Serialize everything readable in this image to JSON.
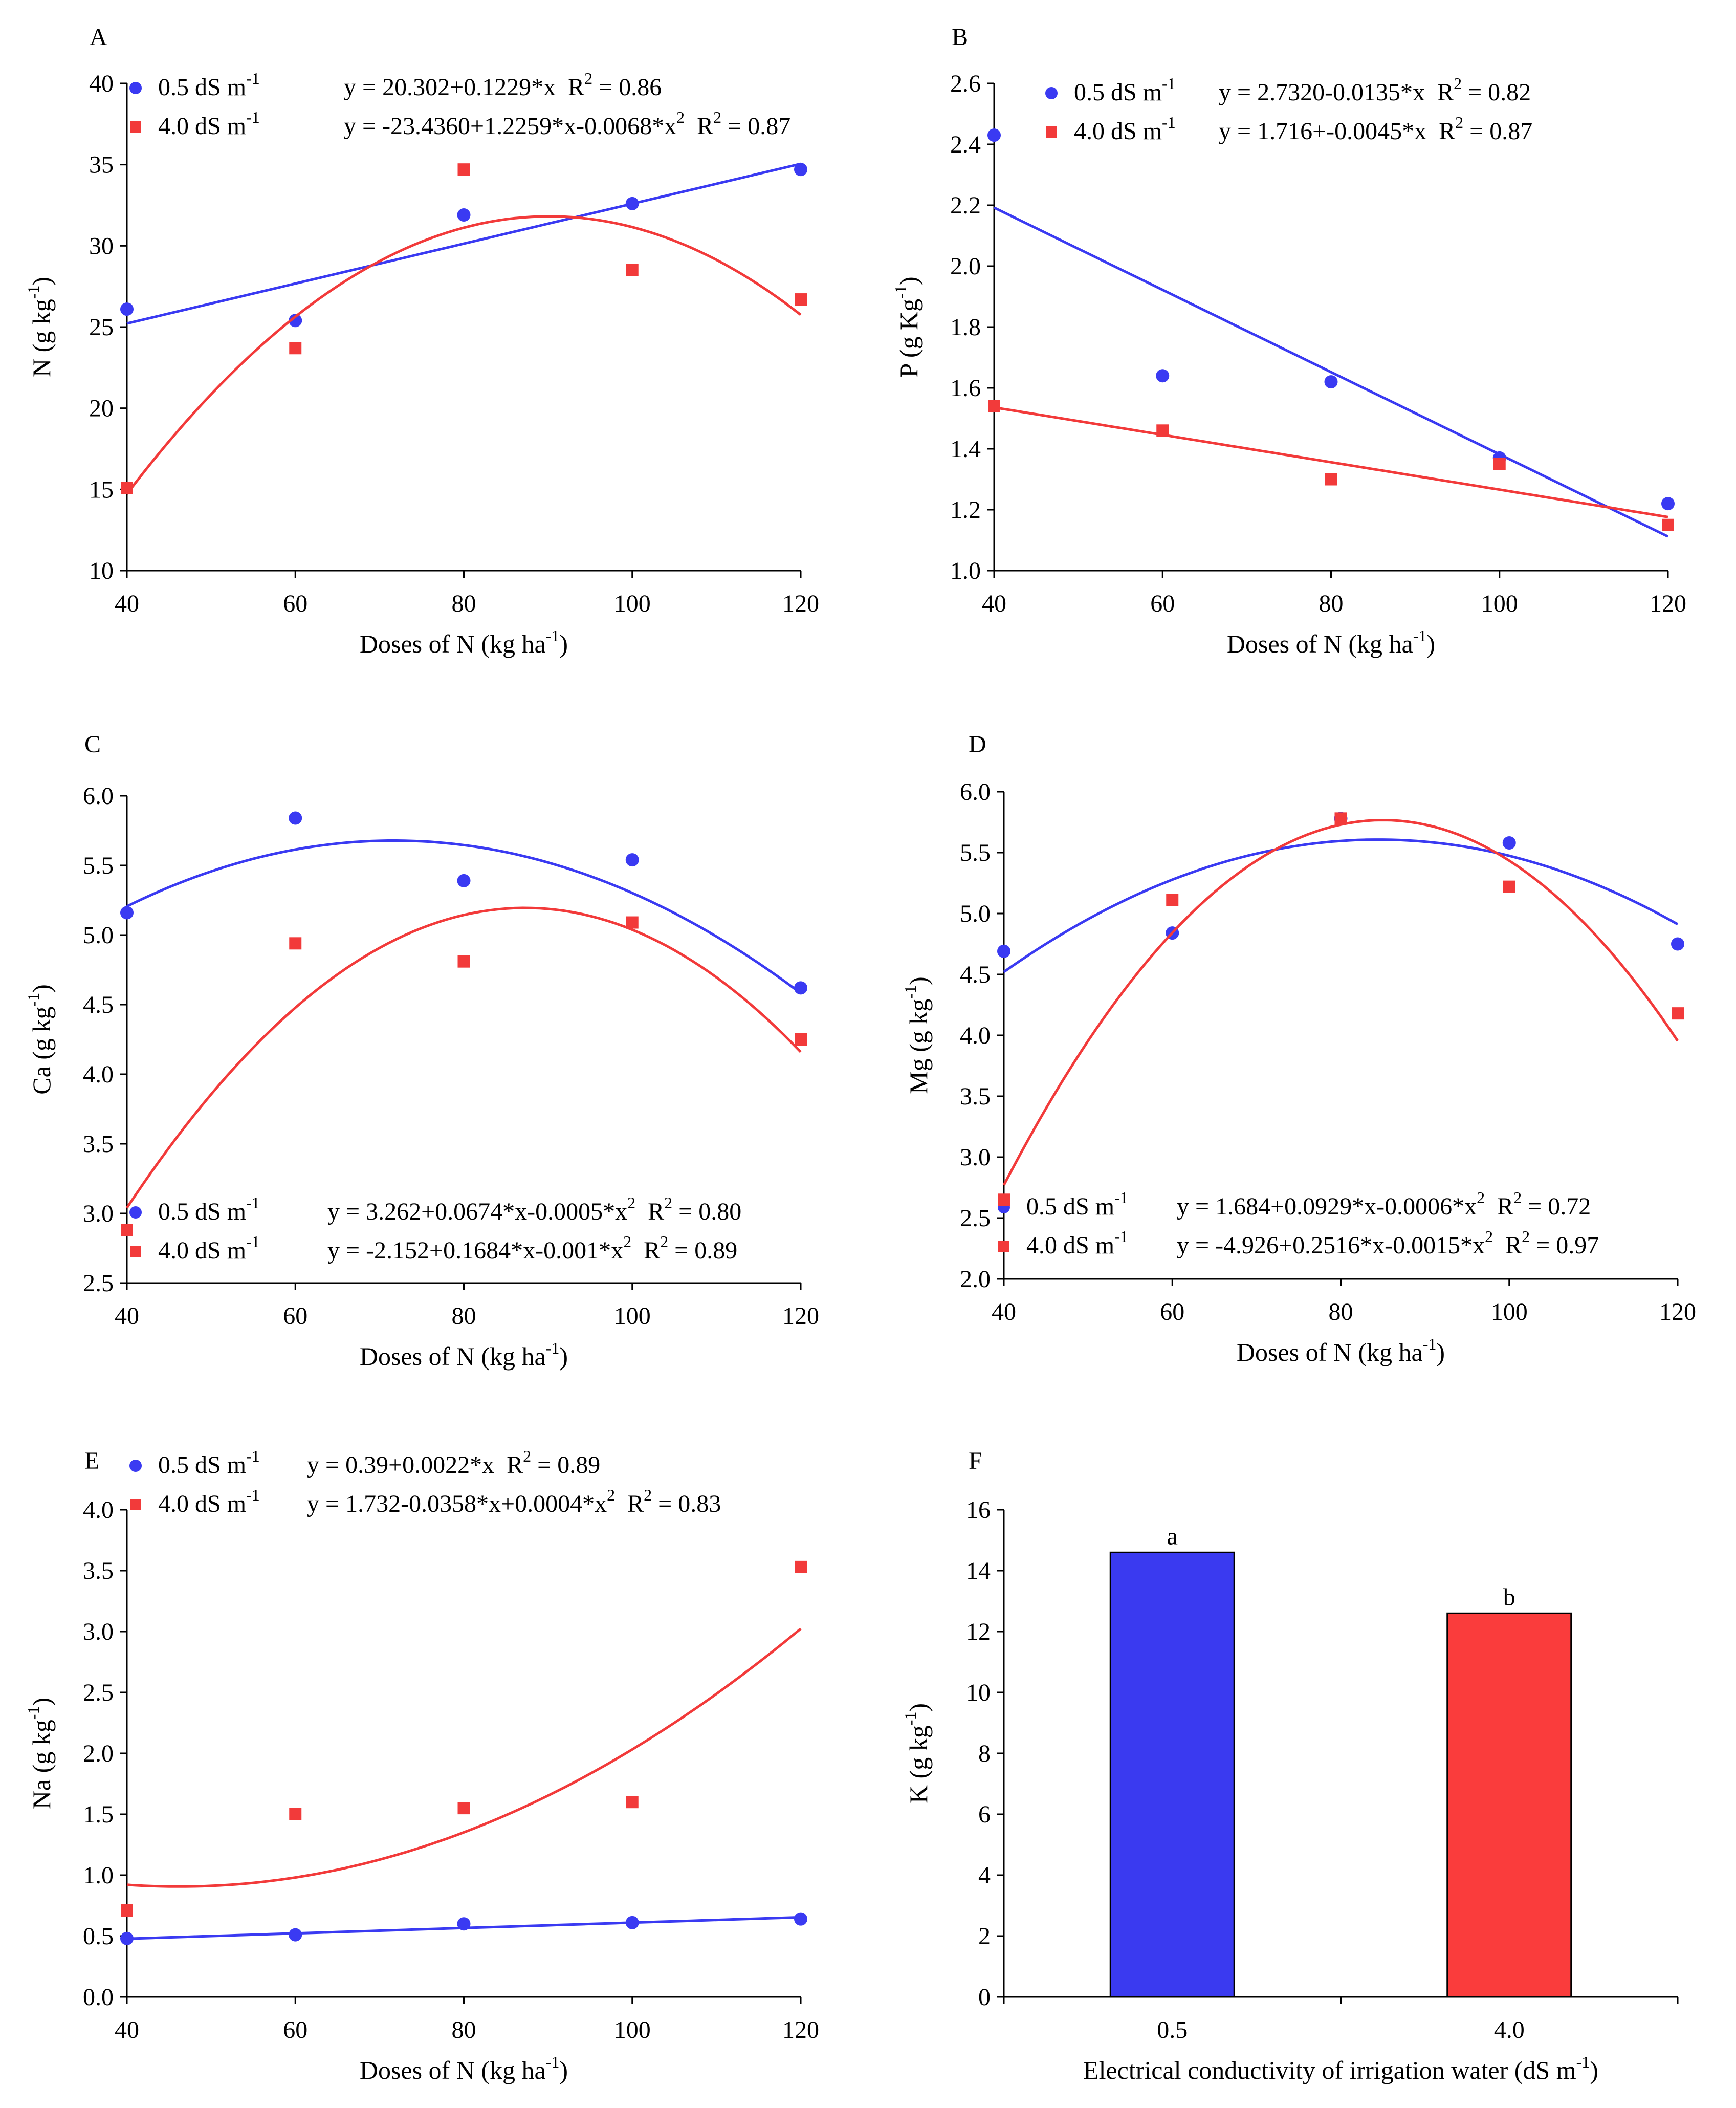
{
  "colors": {
    "blue": "#3a3af2",
    "red": "#f23a3a",
    "bar_blue": "#3a3af0",
    "bar_red": "#fa3c3c"
  },
  "chart_data": [
    {
      "panel": "A",
      "type": "scatter",
      "xlabel": "Doses of N (kg ha",
      "xlabel_sup": "-1",
      "xlabel_end": ")",
      "ylabel": "N (g kg",
      "ylabel_sup": "-1",
      "ylabel_end": ")",
      "xlim": [
        40,
        120
      ],
      "xticks": [
        40,
        60,
        80,
        100,
        120
      ],
      "ylim": [
        10,
        40
      ],
      "yticks": [
        10,
        15,
        20,
        25,
        30,
        35,
        40
      ],
      "ydec": 0,
      "series": [
        {
          "name": "0.5 dS m",
          "color": "#3a3af2",
          "marker": "circle",
          "x": [
            40,
            60,
            80,
            100,
            120
          ],
          "y": [
            26.1,
            25.4,
            31.9,
            32.6,
            34.7
          ],
          "fit": [
            20.302,
            0.1229,
            0
          ],
          "eq": "y = 20.302+0.1229*x",
          "eq_sq": false,
          "r2": "R",
          "r2_val": " = 0.86"
        },
        {
          "name": "4.0 dS m",
          "color": "#f23a3a",
          "marker": "square",
          "x": [
            40,
            60,
            80,
            100,
            120
          ],
          "y": [
            15.1,
            23.7,
            34.7,
            28.5,
            26.7
          ],
          "fit": [
            -23.436,
            1.2259,
            -0.0068
          ],
          "eq": "y = -23.4360+1.2259*x-0.0068*x",
          "eq_sq": true,
          "r2": "R",
          "r2_val": " = 0.87"
        }
      ]
    },
    {
      "panel": "B",
      "type": "scatter",
      "xlabel": "Doses of N (kg ha",
      "xlabel_sup": "-1",
      "xlabel_end": ")",
      "ylabel": "P (g Kg",
      "ylabel_sup": "-1",
      "ylabel_end": ")",
      "xlim": [
        40,
        120
      ],
      "xticks": [
        40,
        60,
        80,
        100,
        120
      ],
      "ylim": [
        1.0,
        2.6
      ],
      "yticks": [
        1.0,
        1.2,
        1.4,
        1.6,
        1.8,
        2.0,
        2.2,
        2.4,
        2.6
      ],
      "ydec": 1,
      "series": [
        {
          "name": "0.5 dS m",
          "color": "#3a3af2",
          "marker": "circle",
          "x": [
            40,
            60,
            80,
            100,
            120
          ],
          "y": [
            2.43,
            1.64,
            1.62,
            1.37,
            1.22
          ],
          "fit": [
            2.732,
            -0.0135,
            0
          ],
          "eq": "y = 2.7320-0.0135*x",
          "eq_sq": false,
          "r2": "R",
          "r2_val": " = 0.82"
        },
        {
          "name": "4.0 dS m",
          "color": "#f23a3a",
          "marker": "square",
          "x": [
            40,
            60,
            80,
            100,
            120
          ],
          "y": [
            1.54,
            1.46,
            1.3,
            1.35,
            1.15
          ],
          "fit": [
            1.716,
            -0.0045,
            0
          ],
          "eq": "y = 1.716+-0.0045*x",
          "eq_sq": false,
          "r2": "R",
          "r2_val": " = 0.87"
        }
      ]
    },
    {
      "panel": "C",
      "type": "scatter",
      "xlabel": "Doses of N (kg ha",
      "xlabel_sup": "-1",
      "xlabel_end": ")",
      "ylabel": "Ca (g kg",
      "ylabel_sup": "-1",
      "ylabel_end": ")",
      "xlim": [
        40,
        120
      ],
      "xticks": [
        40,
        60,
        80,
        100,
        120
      ],
      "ylim": [
        2.5,
        6.0
      ],
      "yticks": [
        2.5,
        3.0,
        3.5,
        4.0,
        4.5,
        5.0,
        5.5,
        6.0
      ],
      "ydec": 1,
      "series": [
        {
          "name": "0.5 dS m",
          "color": "#3a3af2",
          "marker": "circle",
          "x": [
            40,
            60,
            80,
            100,
            120
          ],
          "y": [
            5.16,
            5.84,
            5.39,
            5.54,
            4.62
          ],
          "fit": [
            3.262,
            0.0674,
            -0.00047
          ],
          "eq": "y = 3.262+0.0674*x-0.0005*x",
          "eq_sq": true,
          "r2": "R",
          "r2_val": " = 0.80"
        },
        {
          "name": "4.0 dS m",
          "color": "#f23a3a",
          "marker": "square",
          "x": [
            40,
            60,
            80,
            100,
            120
          ],
          "y": [
            2.88,
            4.94,
            4.81,
            5.09,
            4.25
          ],
          "fit": [
            -2.152,
            0.1684,
            -0.000965
          ],
          "eq": "y = -2.152+0.1684*x-0.001*x",
          "eq_sq": true,
          "r2": "R",
          "r2_val": " = 0.89"
        }
      ]
    },
    {
      "panel": "D",
      "type": "scatter",
      "xlabel": "Doses of N (kg ha",
      "xlabel_sup": "-1",
      "xlabel_end": ")",
      "ylabel": "Mg (g kg",
      "ylabel_sup": "-1",
      "ylabel_end": ")",
      "xlim": [
        40,
        120
      ],
      "xticks": [
        40,
        60,
        80,
        100,
        120
      ],
      "ylim": [
        2.0,
        6.0
      ],
      "yticks": [
        2.0,
        2.5,
        3.0,
        3.5,
        4.0,
        4.5,
        5.0,
        5.5,
        6.0
      ],
      "ydec": 1,
      "series": [
        {
          "name": "0.5 dS m",
          "color": "#3a3af2",
          "marker": "circle",
          "x": [
            40,
            60,
            80,
            100,
            120
          ],
          "y": [
            4.69,
            4.84,
            5.78,
            5.58,
            4.75
          ],
          "fit": [
            1.684,
            0.0929,
            -0.00055
          ],
          "eq": "y = 1.684+0.0929*x-0.0006*x",
          "eq_sq": true,
          "r2": "R",
          "r2_val": " = 0.72"
        },
        {
          "name": "4.0 dS m",
          "color": "#f23a3a",
          "marker": "square",
          "x": [
            40,
            60,
            80,
            100,
            120
          ],
          "y": [
            2.65,
            5.11,
            5.78,
            5.22,
            4.18
          ],
          "fit": [
            -4.926,
            0.2516,
            -0.00148
          ],
          "eq": "y = -4.926+0.2516*x-0.0015*x",
          "eq_sq": true,
          "r2": "R",
          "r2_val": " = 0.97"
        }
      ]
    },
    {
      "panel": "E",
      "type": "scatter",
      "xlabel": "Doses of N (kg ha",
      "xlabel_sup": "-1",
      "xlabel_end": ")",
      "ylabel": "Na (g kg",
      "ylabel_sup": "-1",
      "ylabel_end": ")",
      "xlim": [
        40,
        120
      ],
      "xticks": [
        40,
        60,
        80,
        100,
        120
      ],
      "ylim": [
        0.0,
        4.0
      ],
      "yticks": [
        0.0,
        0.5,
        1.0,
        1.5,
        2.0,
        2.5,
        3.0,
        3.5,
        4.0
      ],
      "ydec": 1,
      "series": [
        {
          "name": "0.5 dS m",
          "color": "#3a3af2",
          "marker": "circle",
          "x": [
            40,
            60,
            80,
            100,
            120
          ],
          "y": [
            0.48,
            0.51,
            0.6,
            0.61,
            0.64
          ],
          "fit": [
            0.39,
            0.0022,
            0
          ],
          "eq": "y = 0.39+0.0022*x",
          "eq_sq": false,
          "r2": "R",
          "r2_val": " = 0.89"
        },
        {
          "name": "4.0 dS m",
          "color": "#f23a3a",
          "marker": "square",
          "x": [
            40,
            60,
            80,
            100,
            120
          ],
          "y": [
            0.71,
            1.5,
            1.55,
            1.6,
            3.53
          ],
          "fit": [
            1.732,
            -0.0358,
            0.000388
          ],
          "eq": "y = 1.732-0.0358*x+0.0004*x",
          "eq_sq": true,
          "r2": "R",
          "r2_val": " = 0.83"
        }
      ]
    },
    {
      "panel": "F",
      "type": "bar",
      "xlabel": "Electrical conductivity of irrigation water (dS m",
      "xlabel_sup": "-1",
      "xlabel_end": ")",
      "ylabel": "K (g kg",
      "ylabel_sup": "-1",
      "ylabel_end": ")",
      "categories": [
        "0.5",
        "4.0"
      ],
      "values": [
        14.6,
        12.6
      ],
      "letters": [
        "a",
        "b"
      ],
      "ylim": [
        0,
        16
      ],
      "yticks": [
        0,
        2,
        4,
        6,
        8,
        10,
        12,
        14,
        16
      ],
      "ydec": 0
    }
  ]
}
